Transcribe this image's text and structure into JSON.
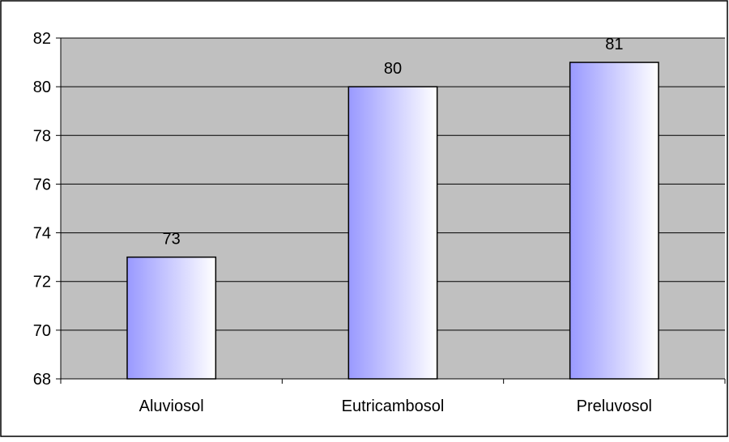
{
  "chart_data": {
    "type": "bar",
    "title": "",
    "xlabel": "",
    "ylabel": "",
    "categories": [
      "Aluviosol",
      "Eutricambosol",
      "Preluvosol"
    ],
    "values": [
      73,
      80,
      81
    ],
    "ylim": [
      68,
      82
    ],
    "yticks": [
      "68",
      "70",
      "72",
      "74",
      "76",
      "78",
      "80",
      "82"
    ],
    "grid": true,
    "legend": "none",
    "colors": {
      "plot_background": "#c0c0c0",
      "bar_gradient_start": "#9999ff",
      "bar_gradient_end": "#ffffff",
      "bar_outline": "#000000",
      "gridline": "#000000"
    }
  }
}
